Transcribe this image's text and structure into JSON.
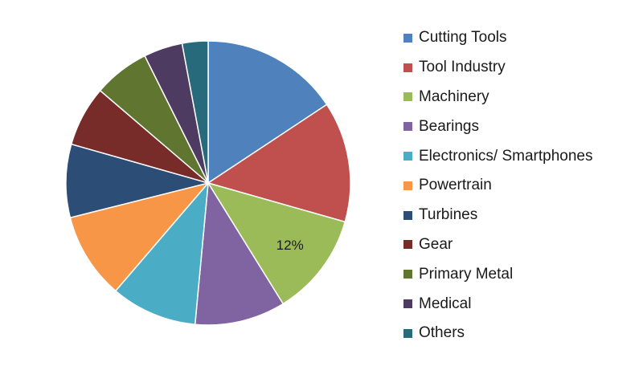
{
  "chart_data": {
    "type": "pie",
    "title": "",
    "start_angle_deg": 0,
    "direction": "clockwise",
    "slices": [
      {
        "label": "Cutting Tools",
        "value": 16,
        "color": "#4F81BD"
      },
      {
        "label": "Tool Industry",
        "value": 14,
        "color": "#C0504D"
      },
      {
        "label": "Machinery",
        "value": 12,
        "color": "#9BBB59",
        "data_label": "12%"
      },
      {
        "label": "Bearings",
        "value": 10.5,
        "color": "#8064A2"
      },
      {
        "label": "Electronics/ Smartphones",
        "value": 10,
        "color": "#4BACC6"
      },
      {
        "label": "Powertrain",
        "value": 10,
        "color": "#F79646"
      },
      {
        "label": "Turbines",
        "value": 8.5,
        "color": "#2C4D75"
      },
      {
        "label": "Gear",
        "value": 7,
        "color": "#772C2A"
      },
      {
        "label": "Primary Metal",
        "value": 6.5,
        "color": "#5F7530"
      },
      {
        "label": "Medical",
        "value": 4.5,
        "color": "#4D3B62"
      },
      {
        "label": "Others",
        "value": 3,
        "color": "#276A7C"
      }
    ],
    "legend_position": "right"
  }
}
